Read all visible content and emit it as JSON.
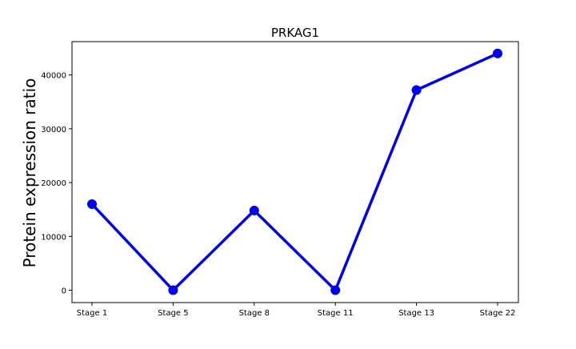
{
  "chart_data": {
    "type": "line",
    "title": "PRKAG1",
    "xlabel": "",
    "ylabel": "Protein expression ratio",
    "categories": [
      "Stage 1",
      "Stage 5",
      "Stage 8",
      "Stage 11",
      "Stage 13",
      "Stage 22"
    ],
    "series": [
      {
        "values": [
          16000,
          0,
          14800,
          0,
          37200,
          44000
        ],
        "color": "#0000ee"
      }
    ],
    "ylim": [
      -2300,
      46200
    ],
    "yticks": [
      0,
      10000,
      20000,
      30000,
      40000
    ],
    "grid": false,
    "legend": "none",
    "marker": "circle"
  }
}
